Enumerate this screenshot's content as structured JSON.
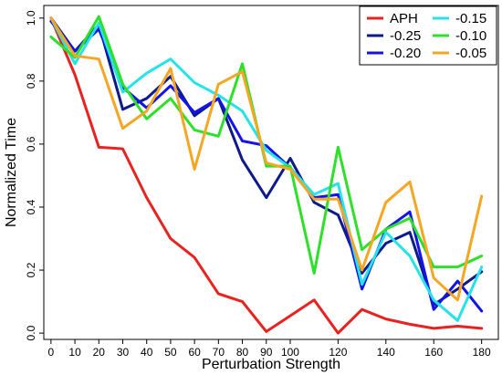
{
  "chart_data": {
    "type": "line",
    "xlabel": "Perturbation Strength",
    "ylabel": "Normalized Time",
    "xlim": [
      -3,
      187
    ],
    "ylim": [
      -0.02,
      1.04
    ],
    "xticks": [
      0,
      10,
      20,
      30,
      40,
      50,
      60,
      70,
      80,
      90,
      100,
      120,
      140,
      160,
      180
    ],
    "xtick_labels": [
      "0",
      "10",
      "20",
      "30",
      "40",
      "50",
      "60",
      "70",
      "80",
      "90",
      "100",
      "120",
      "140",
      "160",
      "180"
    ],
    "yticks": [
      0.0,
      0.2,
      0.4,
      0.6,
      0.8,
      1.0
    ],
    "ytick_labels": [
      "0.0",
      "0.2",
      "0.4",
      "0.6",
      "0.8",
      "1.0"
    ],
    "grid": false,
    "legend_position": "top-right",
    "x": [
      0,
      10,
      20,
      30,
      40,
      50,
      60,
      70,
      80,
      90,
      100,
      110,
      120,
      130,
      140,
      150,
      160,
      170,
      180
    ],
    "series": [
      {
        "name": "APH",
        "color": "#e8231f",
        "values": [
          1.0,
          0.82,
          0.59,
          0.585,
          0.43,
          0.3,
          0.24,
          0.125,
          0.1,
          0.005,
          0.055,
          0.105,
          0.0,
          0.075,
          0.045,
          0.028,
          0.015,
          0.022,
          0.015
        ]
      },
      {
        "name": "-0.25",
        "color": "#0d1a8c",
        "values": [
          1.0,
          0.895,
          0.98,
          0.71,
          0.745,
          0.815,
          0.69,
          0.745,
          0.55,
          0.43,
          0.555,
          0.415,
          0.375,
          0.19,
          0.285,
          0.32,
          0.09,
          0.14,
          0.195
        ]
      },
      {
        "name": "-0.20",
        "color": "#1414e8",
        "values": [
          0.99,
          0.895,
          0.965,
          0.78,
          0.715,
          0.785,
          0.7,
          0.745,
          0.61,
          0.595,
          0.525,
          0.43,
          0.44,
          0.14,
          0.33,
          0.385,
          0.075,
          0.165,
          0.07
        ]
      },
      {
        "name": "-0.15",
        "color": "#27e3e8",
        "values": [
          1.0,
          0.855,
          0.985,
          0.765,
          0.825,
          0.87,
          0.795,
          0.755,
          0.705,
          0.58,
          0.525,
          0.44,
          0.475,
          0.155,
          0.32,
          0.245,
          0.105,
          0.04,
          0.21
        ]
      },
      {
        "name": "-0.10",
        "color": "#2ee02a",
        "values": [
          0.94,
          0.875,
          1.005,
          0.79,
          0.68,
          0.745,
          0.645,
          0.625,
          0.855,
          0.53,
          0.53,
          0.19,
          0.59,
          0.265,
          0.33,
          0.365,
          0.21,
          0.21,
          0.245
        ]
      },
      {
        "name": "-0.05",
        "color": "#f5a623",
        "values": [
          1.0,
          0.88,
          0.87,
          0.65,
          0.705,
          0.84,
          0.52,
          0.79,
          0.83,
          0.54,
          0.52,
          0.425,
          0.425,
          0.2,
          0.415,
          0.48,
          0.175,
          0.105,
          0.435
        ]
      }
    ]
  }
}
